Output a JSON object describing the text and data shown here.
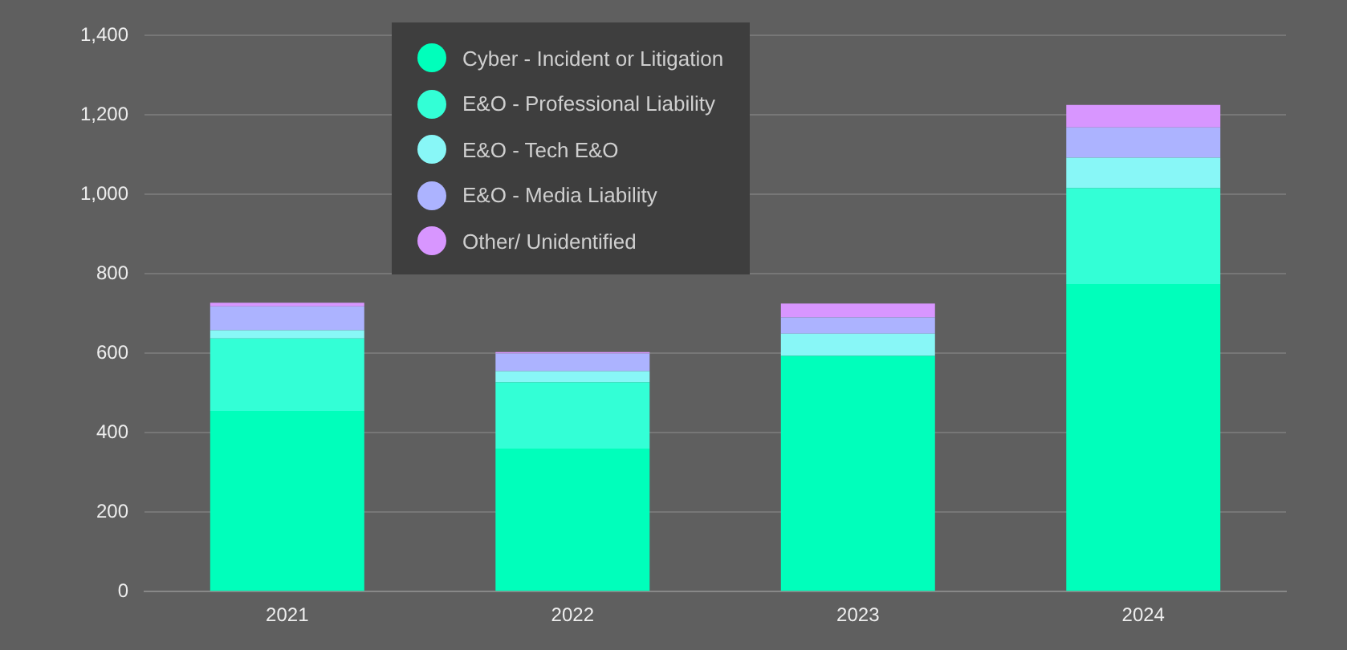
{
  "chart_data": {
    "type": "bar",
    "stacked": true,
    "categories": [
      "2021",
      "2022",
      "2023",
      "2024"
    ],
    "series": [
      {
        "name": "Cyber - Incident or Litigation",
        "color": "#00ffbb",
        "values": [
          455,
          360,
          593,
          774
        ]
      },
      {
        "name": "E&O - Professional Liability",
        "color": "#33ffd6",
        "values": [
          182,
          167,
          0,
          242
        ]
      },
      {
        "name": "E&O - Tech E&O",
        "color": "#88f7f7",
        "values": [
          21,
          28,
          56,
          76
        ]
      },
      {
        "name": "E&O - Media Liability",
        "color": "#acb3ff",
        "values": [
          60,
          44,
          41,
          76
        ]
      },
      {
        "name": "Other/ Unidentified",
        "color": "#d896ff",
        "values": [
          9,
          4,
          35,
          57
        ]
      }
    ],
    "ylim": [
      0,
      1400
    ],
    "yticks": [
      0,
      {
        "value": 200,
        "label": "200"
      },
      {
        "value": 400,
        "label": "400"
      },
      {
        "value": 600,
        "label": "600"
      },
      {
        "value": 800,
        "label": "800"
      },
      {
        "value": 1000,
        "label": "1,000"
      },
      {
        "value": 1200,
        "label": "1,200"
      },
      {
        "value": 1400,
        "label": "1,400"
      }
    ],
    "grid": "y",
    "legend": "top left"
  }
}
